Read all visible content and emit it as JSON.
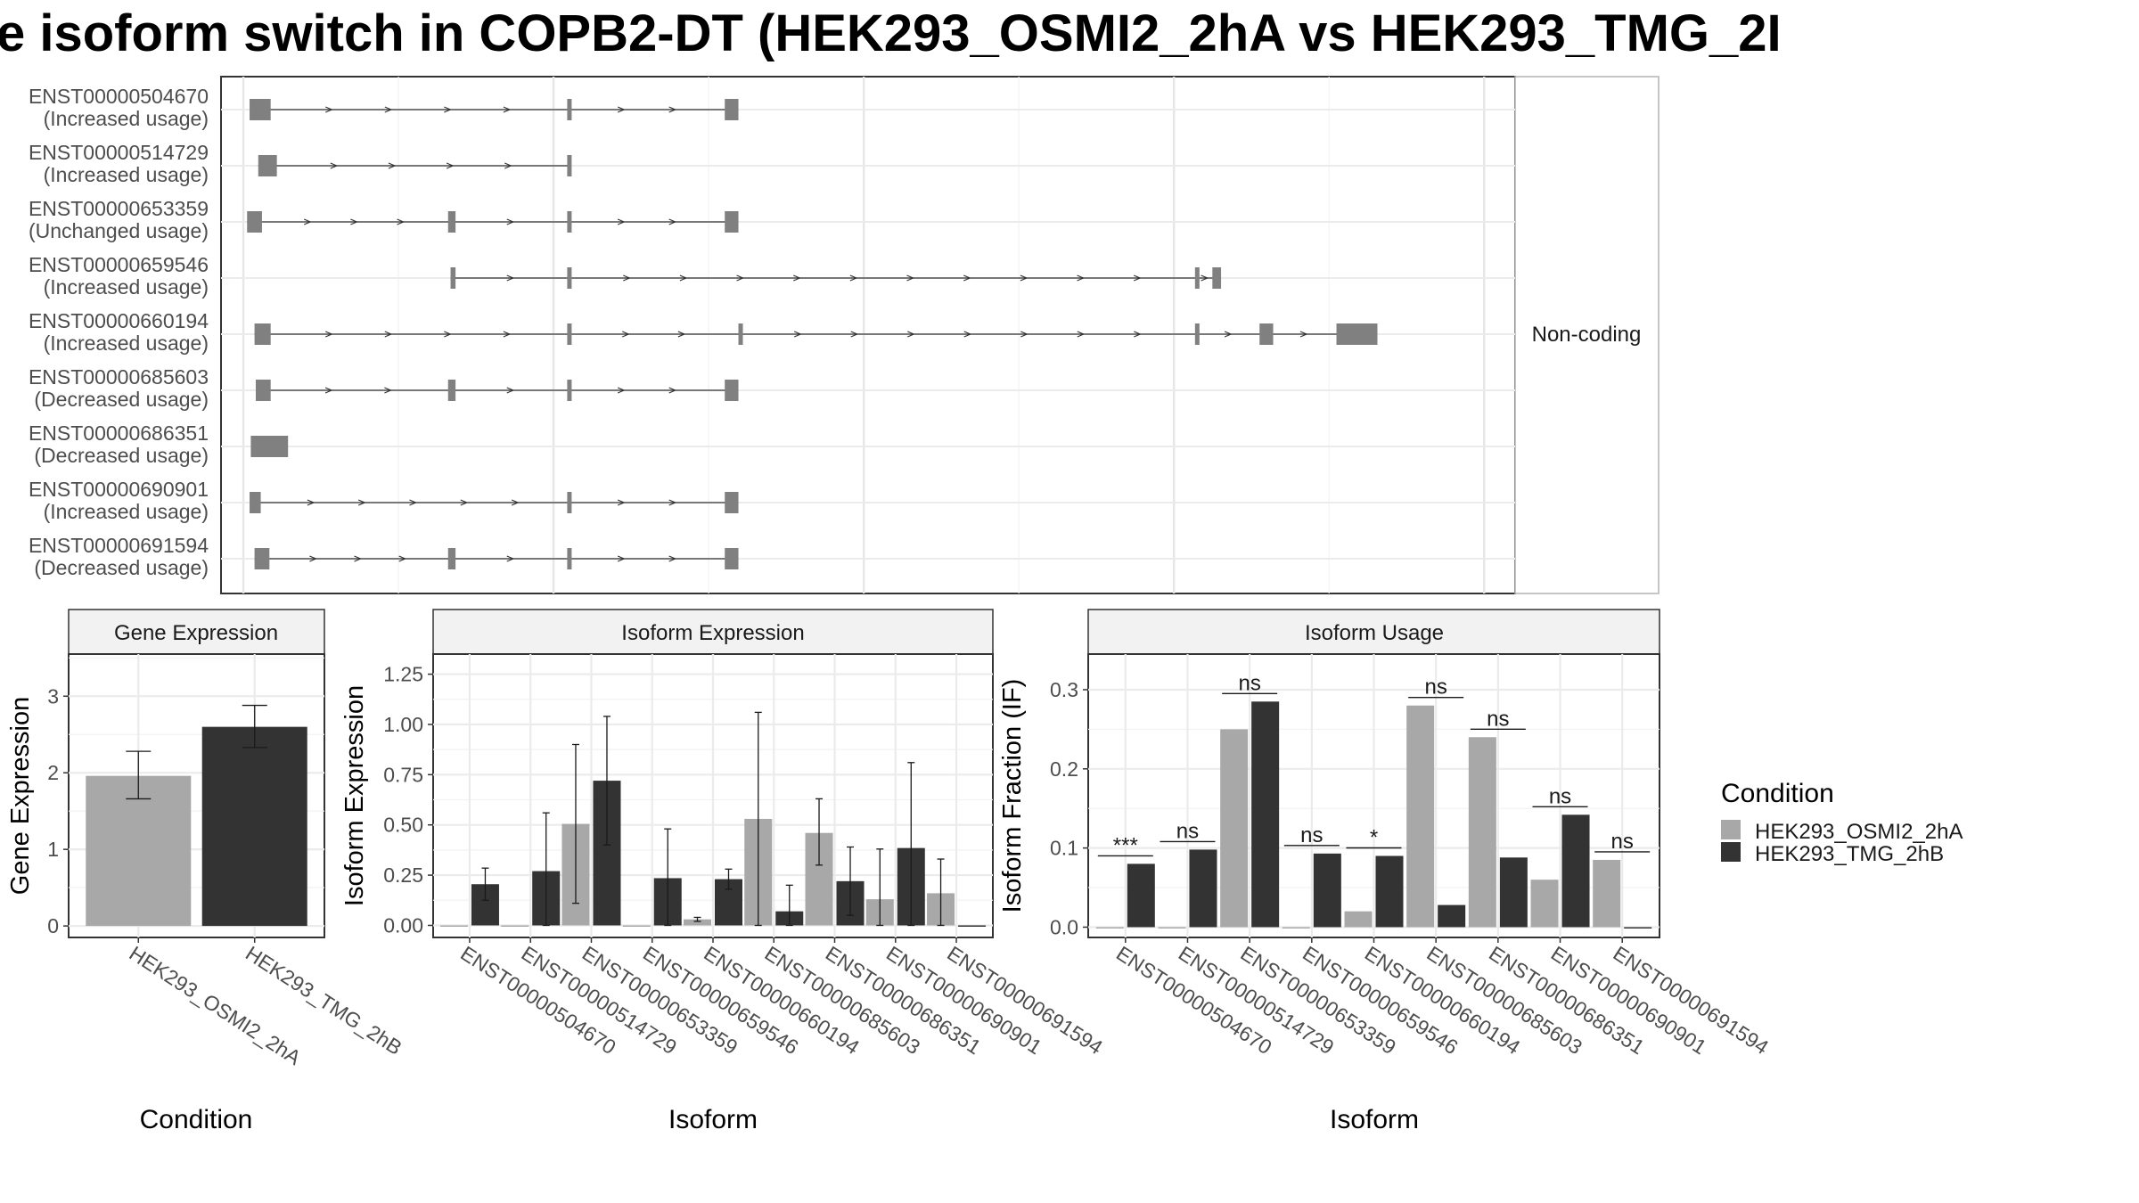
{
  "title": "e isoform switch in COPB2-DT (HEK293_OSMI2_2hA vs HEK293_TMG_2I",
  "colors": {
    "cond_a": "#A8A8A8",
    "cond_b": "#333333",
    "exon": "#808080",
    "grid": "#EBEBEB",
    "frame": "#333333"
  },
  "structure_panel": {
    "strip_label": "Non-coding",
    "transcripts": [
      {
        "id": "ENST00000504670",
        "usage": "(Increased usage)",
        "exons": [
          [
            5,
            22
          ],
          [
            261,
            264
          ],
          [
            388,
            399
          ]
        ]
      },
      {
        "id": "ENST00000514729",
        "usage": "(Increased usage)",
        "exons": [
          [
            12,
            27
          ],
          [
            261,
            264
          ]
        ]
      },
      {
        "id": "ENST00000653359",
        "usage": "(Unchanged usage)",
        "exons": [
          [
            3,
            15
          ],
          [
            165,
            171
          ],
          [
            261,
            264
          ],
          [
            388,
            399
          ]
        ]
      },
      {
        "id": "ENST00000659546",
        "usage": "(Increased usage)",
        "exons": [
          [
            167,
            171
          ],
          [
            261,
            264
          ],
          [
            767,
            770
          ],
          [
            781,
            788
          ]
        ]
      },
      {
        "id": "ENST00000660194",
        "usage": "(Increased usage)",
        "exons": [
          [
            9,
            22
          ],
          [
            261,
            264
          ],
          [
            399,
            402
          ],
          [
            767,
            770
          ],
          [
            819,
            830
          ],
          [
            881,
            914
          ]
        ]
      },
      {
        "id": "ENST00000685603",
        "usage": "(Decreased usage)",
        "exons": [
          [
            10,
            22
          ],
          [
            165,
            171
          ],
          [
            261,
            264
          ],
          [
            388,
            399
          ]
        ]
      },
      {
        "id": "ENST00000686351",
        "usage": "(Decreased usage)",
        "exons": [
          [
            6,
            36
          ]
        ]
      },
      {
        "id": "ENST00000690901",
        "usage": "(Increased usage)",
        "exons": [
          [
            5,
            14
          ],
          [
            261,
            264
          ],
          [
            388,
            399
          ]
        ]
      },
      {
        "id": "ENST00000691594",
        "usage": "(Decreased usage)",
        "exons": [
          [
            9,
            21
          ],
          [
            165,
            171
          ],
          [
            261,
            264
          ],
          [
            388,
            399
          ]
        ]
      }
    ]
  },
  "legend": {
    "title": "Condition",
    "items": [
      "HEK293_OSMI2_2hA",
      "HEK293_TMG_2hB"
    ]
  },
  "chart_data": [
    {
      "type": "bar",
      "title": "Gene Expression",
      "xlabel": "Condition",
      "ylabel": "Gene Expression",
      "ylim": [
        -0.15,
        3.55
      ],
      "yticks": [
        0,
        1,
        2,
        3
      ],
      "categories": [
        "HEK293_OSMI2_2hA",
        "HEK293_TMG_2hB"
      ],
      "series": [
        {
          "name": "HEK293_OSMI2_2hA",
          "values": [
            1.96,
            null
          ],
          "err_low": [
            1.66,
            null
          ],
          "err_high": [
            2.28,
            null
          ]
        },
        {
          "name": "HEK293_TMG_2hB",
          "values": [
            null,
            2.6
          ],
          "err_low": [
            null,
            2.33
          ],
          "err_high": [
            null,
            2.88
          ]
        }
      ]
    },
    {
      "type": "bar",
      "title": "Isoform Expression",
      "xlabel": "Isoform",
      "ylabel": "Isoform Expression",
      "ylim": [
        -0.06,
        1.35
      ],
      "yticks": [
        0.0,
        0.25,
        0.5,
        0.75,
        1.0,
        1.25
      ],
      "ytick_labels": [
        "0.00",
        "0.25",
        "0.50",
        "0.75",
        "1.00",
        "1.25"
      ],
      "categories": [
        "ENST00000504670",
        "ENST00000514729",
        "ENST00000653359",
        "ENST00000659546",
        "ENST00000660194",
        "ENST00000685603",
        "ENST00000686351",
        "ENST00000690901",
        "ENST00000691594"
      ],
      "series": [
        {
          "name": "HEK293_OSMI2_2hA",
          "values": [
            0,
            0,
            0.505,
            0,
            0.03,
            0.53,
            0.46,
            0.13,
            0.16
          ],
          "err_low": [
            0,
            0,
            0.11,
            0,
            0.02,
            0,
            0.3,
            0,
            0
          ],
          "err_high": [
            0,
            0,
            0.9,
            0,
            0.04,
            1.06,
            0.63,
            0.38,
            0.33
          ]
        },
        {
          "name": "HEK293_TMG_2hB",
          "values": [
            0.205,
            0.27,
            0.72,
            0.235,
            0.23,
            0.07,
            0.22,
            0.385,
            0
          ],
          "err_low": [
            0.125,
            0,
            0.4,
            0,
            0.18,
            0,
            0.05,
            0,
            0
          ],
          "err_high": [
            0.285,
            0.56,
            1.04,
            0.48,
            0.28,
            0.2,
            0.39,
            0.81,
            0
          ]
        }
      ]
    },
    {
      "type": "bar",
      "title": "Isoform Usage",
      "xlabel": "Isoform",
      "ylabel": "Isoform Fraction (IF)",
      "ylim": [
        -0.013,
        0.345
      ],
      "yticks": [
        0.0,
        0.1,
        0.2,
        0.3
      ],
      "ytick_labels": [
        "0.0",
        "0.1",
        "0.2",
        "0.3"
      ],
      "categories": [
        "ENST00000504670",
        "ENST00000514729",
        "ENST00000653359",
        "ENST00000659546",
        "ENST00000660194",
        "ENST00000685603",
        "ENST00000686351",
        "ENST00000690901",
        "ENST00000691594"
      ],
      "series": [
        {
          "name": "HEK293_OSMI2_2hA",
          "values": [
            0,
            0,
            0.25,
            0,
            0.02,
            0.28,
            0.24,
            0.06,
            0.085
          ]
        },
        {
          "name": "HEK293_TMG_2hB",
          "values": [
            0.08,
            0.098,
            0.285,
            0.093,
            0.09,
            0.028,
            0.088,
            0.142,
            0
          ]
        }
      ],
      "annotations": [
        "***",
        "ns",
        "ns",
        "ns",
        "*",
        "ns",
        "ns",
        "ns",
        "ns"
      ]
    }
  ]
}
